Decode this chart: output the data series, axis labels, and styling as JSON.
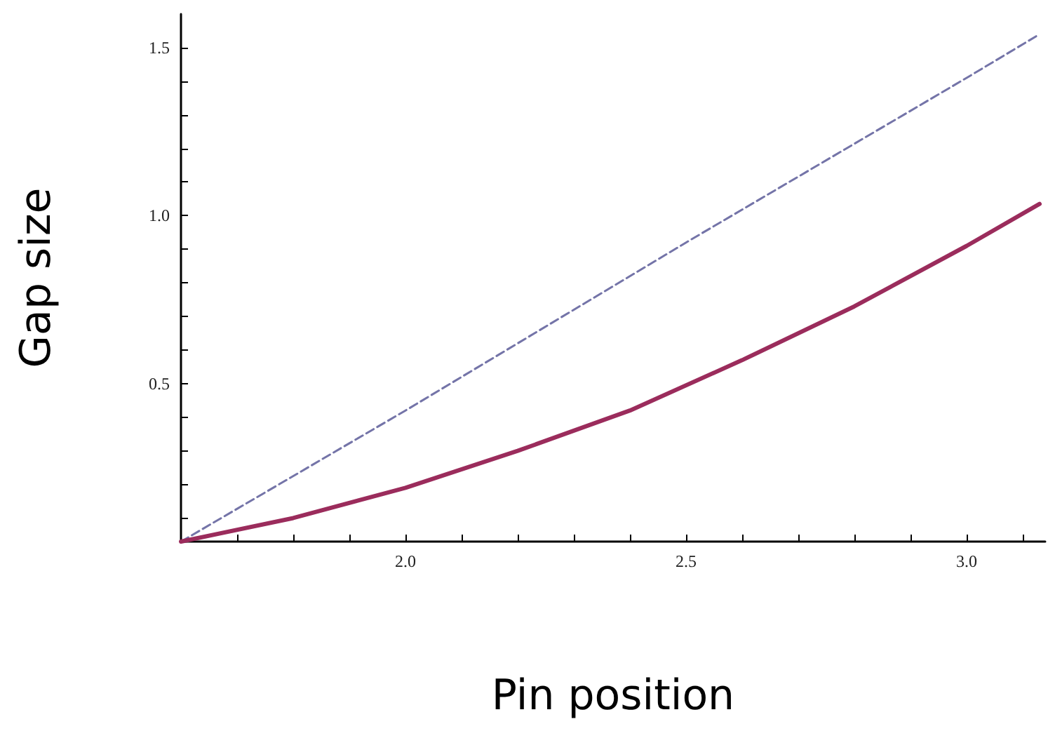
{
  "chart_data": {
    "type": "line",
    "xlabel": "Pin position",
    "ylabel": "Gap size",
    "marker": "none",
    "grid": false,
    "xlim": [
      1.6,
      3.14
    ],
    "ylim": [
      0.03,
      1.6
    ],
    "xticks": [
      {
        "value": 1.7,
        "label": null
      },
      {
        "value": 1.8,
        "label": null
      },
      {
        "value": 1.9,
        "label": null
      },
      {
        "value": 2,
        "label": "2.0"
      },
      {
        "value": 2.1,
        "label": null
      },
      {
        "value": 2.2,
        "label": null
      },
      {
        "value": 2.3,
        "label": null
      },
      {
        "value": 2.4,
        "label": null
      },
      {
        "value": 2.5,
        "label": "2.5"
      },
      {
        "value": 2.6,
        "label": null
      },
      {
        "value": 2.7,
        "label": null
      },
      {
        "value": 2.8,
        "label": null
      },
      {
        "value": 2.9,
        "label": null
      },
      {
        "value": 3,
        "label": "3.0"
      },
      {
        "value": 3.1,
        "label": null
      }
    ],
    "yticks": [
      {
        "value": 0.1,
        "label": null
      },
      {
        "value": 0.2,
        "label": null
      },
      {
        "value": 0.3,
        "label": null
      },
      {
        "value": 0.4,
        "label": null
      },
      0.5,
      {
        "value": 0.6,
        "label": null
      },
      {
        "value": 0.7,
        "label": null
      },
      {
        "value": 0.8,
        "label": null
      },
      {
        "value": 0.9,
        "label": null
      },
      {
        "value": 1,
        "label": "1.0"
      },
      {
        "value": 1.1,
        "label": null
      },
      {
        "value": 1.2,
        "label": null
      },
      {
        "value": 1.3,
        "label": null
      },
      {
        "value": 1.4,
        "label": null
      },
      1.5
    ],
    "series": [
      {
        "color": "#7474a8",
        "line_style": "dashed",
        "x": [
          1.6,
          2.0,
          2.5,
          3.0,
          3.13
        ],
        "values": [
          0.03,
          0.42,
          0.92,
          1.41,
          1.54
        ]
      },
      {
        "color": "#9b2c5c",
        "line_style": "solid",
        "x": [
          1.6,
          1.8,
          2.0,
          2.2,
          2.4,
          2.6,
          2.8,
          3.0,
          3.13
        ],
        "values": [
          0.03,
          0.1,
          0.19,
          0.3,
          0.42,
          0.57,
          0.73,
          0.91,
          1.035
        ]
      }
    ]
  }
}
